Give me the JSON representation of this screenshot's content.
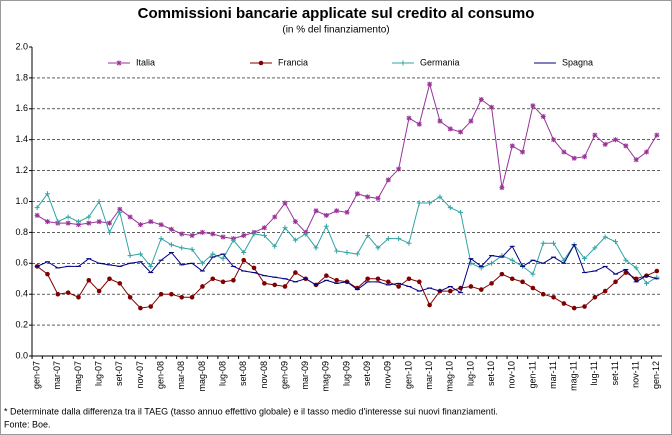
{
  "chart_data": {
    "type": "line",
    "title": "Commissioni bancarie applicate sul credito al consumo",
    "subtitle": "(in % del finanziamento)",
    "categories": [
      "gen-07",
      null,
      "mar-07",
      null,
      "mag-07",
      null,
      "lug-07",
      null,
      "set-07",
      null,
      "nov-07",
      null,
      "gen-08",
      null,
      "mar-08",
      null,
      "mag-08",
      null,
      "lug-08",
      null,
      "set-08",
      null,
      "nov-08",
      null,
      "gen-09",
      null,
      "mar-09",
      null,
      "mag-09",
      null,
      "lug-09",
      null,
      "set-09",
      null,
      "nov-09",
      null,
      "gen-10",
      null,
      "mar-10",
      null,
      "mag-10",
      null,
      "lug-10",
      null,
      "set-10",
      null,
      "nov-10",
      null,
      "gen-11",
      null,
      "mar-11",
      null,
      "mag-11",
      null,
      "lug-11",
      null,
      "set-11",
      null,
      "nov-11",
      null,
      "gen-12"
    ],
    "series": [
      {
        "name": "Italia",
        "color": "#993399",
        "marker": "star",
        "values": [
          0.91,
          0.87,
          0.86,
          0.86,
          0.85,
          0.86,
          0.87,
          0.86,
          0.95,
          0.9,
          0.85,
          0.87,
          0.85,
          0.82,
          0.79,
          0.78,
          0.8,
          0.79,
          0.77,
          0.76,
          0.78,
          0.8,
          0.83,
          0.9,
          0.99,
          0.87,
          0.8,
          0.94,
          0.91,
          0.94,
          0.93,
          1.05,
          1.03,
          1.02,
          1.14,
          1.21,
          1.54,
          1.5,
          1.76,
          1.52,
          1.47,
          1.45,
          1.52,
          1.66,
          1.61,
          1.09,
          1.36,
          1.32,
          1.62,
          1.55,
          1.4,
          1.32,
          1.28,
          1.29,
          1.43,
          1.37,
          1.4,
          1.36,
          1.27,
          1.32,
          1.43
        ]
      },
      {
        "name": "Francia",
        "color": "#800000",
        "marker": "circle",
        "values": [
          0.58,
          0.53,
          0.4,
          0.41,
          0.38,
          0.49,
          0.42,
          0.5,
          0.47,
          0.38,
          0.31,
          0.32,
          0.4,
          0.4,
          0.38,
          0.38,
          0.45,
          0.5,
          0.48,
          0.49,
          0.62,
          0.57,
          0.47,
          0.46,
          0.45,
          0.54,
          0.5,
          0.46,
          0.52,
          0.49,
          0.48,
          0.44,
          0.5,
          0.5,
          0.48,
          0.45,
          0.5,
          0.48,
          0.33,
          0.42,
          0.42,
          0.44,
          0.45,
          0.43,
          0.47,
          0.53,
          0.5,
          0.48,
          0.44,
          0.4,
          0.38,
          0.34,
          0.31,
          0.32,
          0.38,
          0.42,
          0.48,
          0.54,
          0.5,
          0.52,
          0.55
        ]
      },
      {
        "name": "Germania",
        "color": "#33a3a3",
        "marker": "plus",
        "values": [
          0.96,
          1.05,
          0.87,
          0.9,
          0.87,
          0.9,
          1.0,
          0.8,
          0.93,
          0.65,
          0.66,
          0.58,
          0.76,
          0.72,
          0.7,
          0.69,
          0.6,
          0.66,
          0.63,
          0.75,
          0.67,
          0.79,
          0.78,
          0.71,
          0.83,
          0.75,
          0.79,
          0.7,
          0.84,
          0.68,
          0.67,
          0.66,
          0.78,
          0.7,
          0.76,
          0.76,
          0.73,
          0.99,
          0.99,
          1.03,
          0.96,
          0.93,
          0.6,
          0.57,
          0.6,
          0.65,
          0.62,
          0.58,
          0.53,
          0.73,
          0.73,
          0.62,
          0.72,
          0.63,
          0.7,
          0.77,
          0.74,
          0.62,
          0.57,
          0.47,
          0.51
        ]
      },
      {
        "name": "Spagna",
        "color": "#000080",
        "marker": "dash",
        "values": [
          0.58,
          0.61,
          0.57,
          0.58,
          0.58,
          0.63,
          0.6,
          0.59,
          0.58,
          0.6,
          0.61,
          0.54,
          0.62,
          0.67,
          0.59,
          0.6,
          0.55,
          0.64,
          0.66,
          0.58,
          0.55,
          0.54,
          0.52,
          0.51,
          0.5,
          0.48,
          0.5,
          0.46,
          0.49,
          0.47,
          0.48,
          0.43,
          0.48,
          0.48,
          0.46,
          0.47,
          0.45,
          0.42,
          0.44,
          0.42,
          0.45,
          0.41,
          0.63,
          0.58,
          0.65,
          0.64,
          0.71,
          0.58,
          0.62,
          0.6,
          0.64,
          0.6,
          0.72,
          0.54,
          0.55,
          0.58,
          0.53,
          0.56,
          0.48,
          0.52,
          0.5
        ]
      }
    ],
    "ylim": [
      0,
      2
    ],
    "yticks": [
      {
        "value": 0,
        "label": "0.0"
      },
      0.2,
      0.4,
      0.6,
      0.8,
      {
        "value": 1,
        "label": "1.0"
      },
      1.2,
      1.4,
      1.6,
      1.8,
      {
        "value": 2,
        "label": "2.0"
      }
    ],
    "grid": true,
    "legend": "top",
    "footnotes": [
      "* Determinate dalla differenza tra il TAEG (tasso annuo effettivo globale) e il tasso medio d'interesse sui nuovi finanziamenti.",
      "Fonte: Boe."
    ]
  }
}
